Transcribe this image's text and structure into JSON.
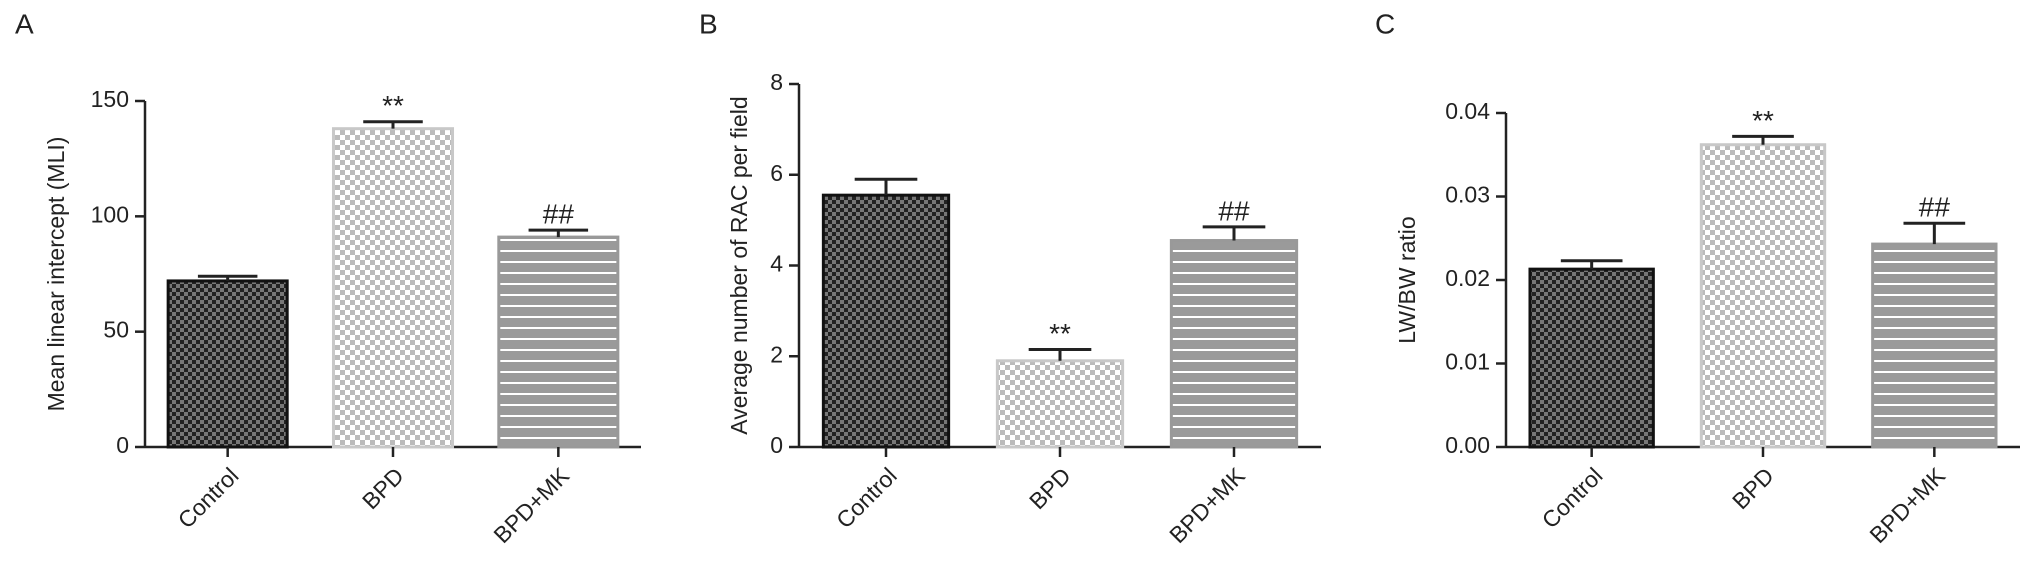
{
  "chart_data": [
    {
      "type": "bar",
      "panel": "A",
      "y_label": "Mean linear intercept (MLI)",
      "categories": [
        "Control",
        "BPD",
        "BPD+MK"
      ],
      "values": [
        72,
        138,
        91
      ],
      "errors": [
        2,
        3,
        3
      ],
      "annotations": [
        null,
        "**",
        "##"
      ],
      "ylim": [
        0,
        150
      ],
      "yticks": [
        0,
        50,
        100,
        150
      ]
    },
    {
      "type": "bar",
      "panel": "B",
      "y_label": "Average number of RAC per field",
      "categories": [
        "Control",
        "BPD",
        "BPD+MK"
      ],
      "values": [
        5.55,
        1.9,
        4.55
      ],
      "errors": [
        0.35,
        0.25,
        0.3
      ],
      "annotations": [
        null,
        "**",
        "##"
      ],
      "ylim": [
        0,
        8
      ],
      "yticks": [
        0,
        2,
        4,
        6,
        8
      ]
    },
    {
      "type": "bar",
      "panel": "C",
      "y_label": "LW/BW ratio",
      "categories": [
        "Control",
        "BPD",
        "BPD+MK"
      ],
      "values": [
        0.0213,
        0.0362,
        0.0243
      ],
      "errors": [
        0.001,
        0.001,
        0.0025
      ],
      "annotations": [
        null,
        "**",
        "##"
      ],
      "ylim": [
        0,
        0.04
      ],
      "yticks": [
        {
          "value": 0,
          "label": "0.00"
        },
        {
          "value": 0.01,
          "label": "0.01"
        },
        {
          "value": 0.02,
          "label": "0.02"
        },
        {
          "value": 0.03,
          "label": "0.03"
        },
        {
          "value": 0.04,
          "label": "0.04"
        }
      ]
    }
  ]
}
